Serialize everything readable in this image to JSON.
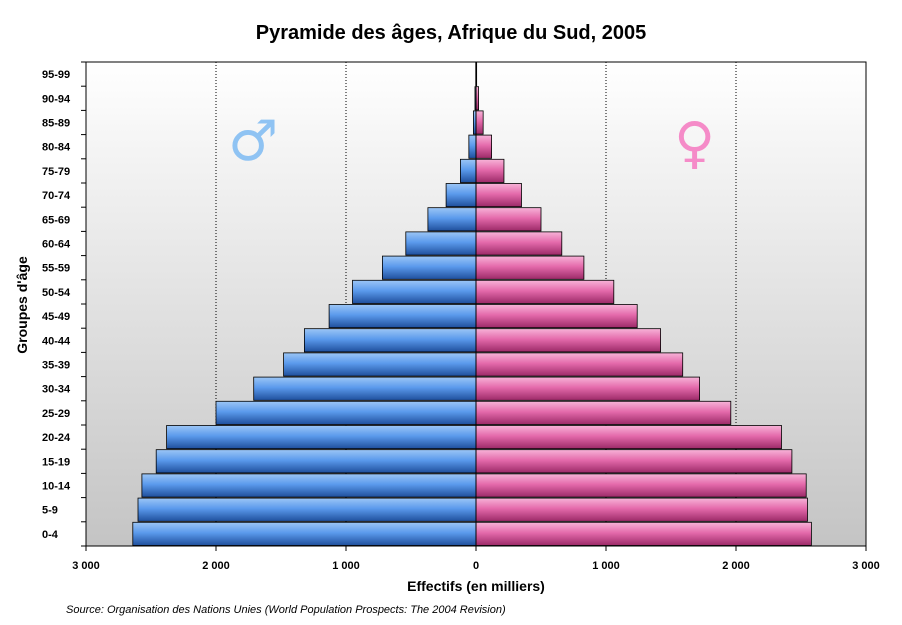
{
  "chart_data": {
    "type": "bar",
    "orientation": "horizontal",
    "subtype": "population-pyramid",
    "title": "Pyramide des âges, Afrique du Sud, 2005",
    "xlabel": "Effectifs (en milliers)",
    "ylabel": "Groupes d'âge",
    "source": "Source: Organisation des Nations Unies (World Population Prospects: The 2004 Revision)",
    "xlim": [
      -3000,
      3000
    ],
    "x_ticks": [
      -3000,
      -2000,
      -1000,
      0,
      1000,
      2000,
      3000
    ],
    "x_tick_labels": [
      "3 000",
      "2 000",
      "1 000",
      "0",
      "1 000",
      "2 000",
      "3 000"
    ],
    "grid": "vertical dotted lines at ±1000, ±2000",
    "categories": [
      "0-4",
      "5-9",
      "10-14",
      "15-19",
      "20-24",
      "25-29",
      "30-34",
      "35-39",
      "40-44",
      "45-49",
      "50-54",
      "55-59",
      "60-64",
      "65-69",
      "70-74",
      "75-79",
      "80-84",
      "85-89",
      "90-94",
      "95-99"
    ],
    "series": [
      {
        "symbol": "♂",
        "side": "left",
        "color": "#4f8fe6",
        "values": [
          2640,
          2600,
          2570,
          2460,
          2380,
          2000,
          1710,
          1480,
          1320,
          1130,
          950,
          720,
          540,
          370,
          230,
          120,
          55,
          20,
          8,
          2
        ]
      },
      {
        "symbol": "♀",
        "side": "right",
        "color": "#e667ad",
        "values": [
          2580,
          2550,
          2540,
          2430,
          2350,
          1960,
          1720,
          1590,
          1420,
          1240,
          1060,
          830,
          660,
          500,
          350,
          215,
          120,
          55,
          20,
          5
        ]
      }
    ]
  }
}
